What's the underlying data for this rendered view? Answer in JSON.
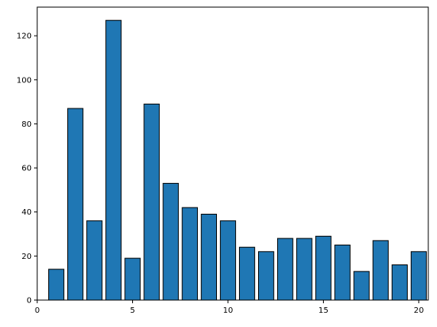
{
  "chart_data": {
    "type": "bar",
    "x": [
      1,
      2,
      3,
      4,
      5,
      6,
      7,
      8,
      9,
      10,
      11,
      12,
      13,
      14,
      15,
      16,
      17,
      18,
      19,
      20
    ],
    "values": [
      14,
      87,
      36,
      127,
      19,
      89,
      53,
      42,
      39,
      36,
      24,
      22,
      28,
      28,
      29,
      25,
      13,
      27,
      16,
      22
    ],
    "title": "",
    "xlabel": "",
    "ylabel": "",
    "xlim": [
      0,
      20.5
    ],
    "ylim": [
      0,
      133
    ],
    "xticks": [
      0,
      5,
      10,
      15,
      20
    ],
    "yticks": [
      0,
      20,
      40,
      60,
      80,
      100,
      120
    ],
    "grid": false,
    "bar_color": "#1f77b4",
    "edge_color": "#000000"
  }
}
